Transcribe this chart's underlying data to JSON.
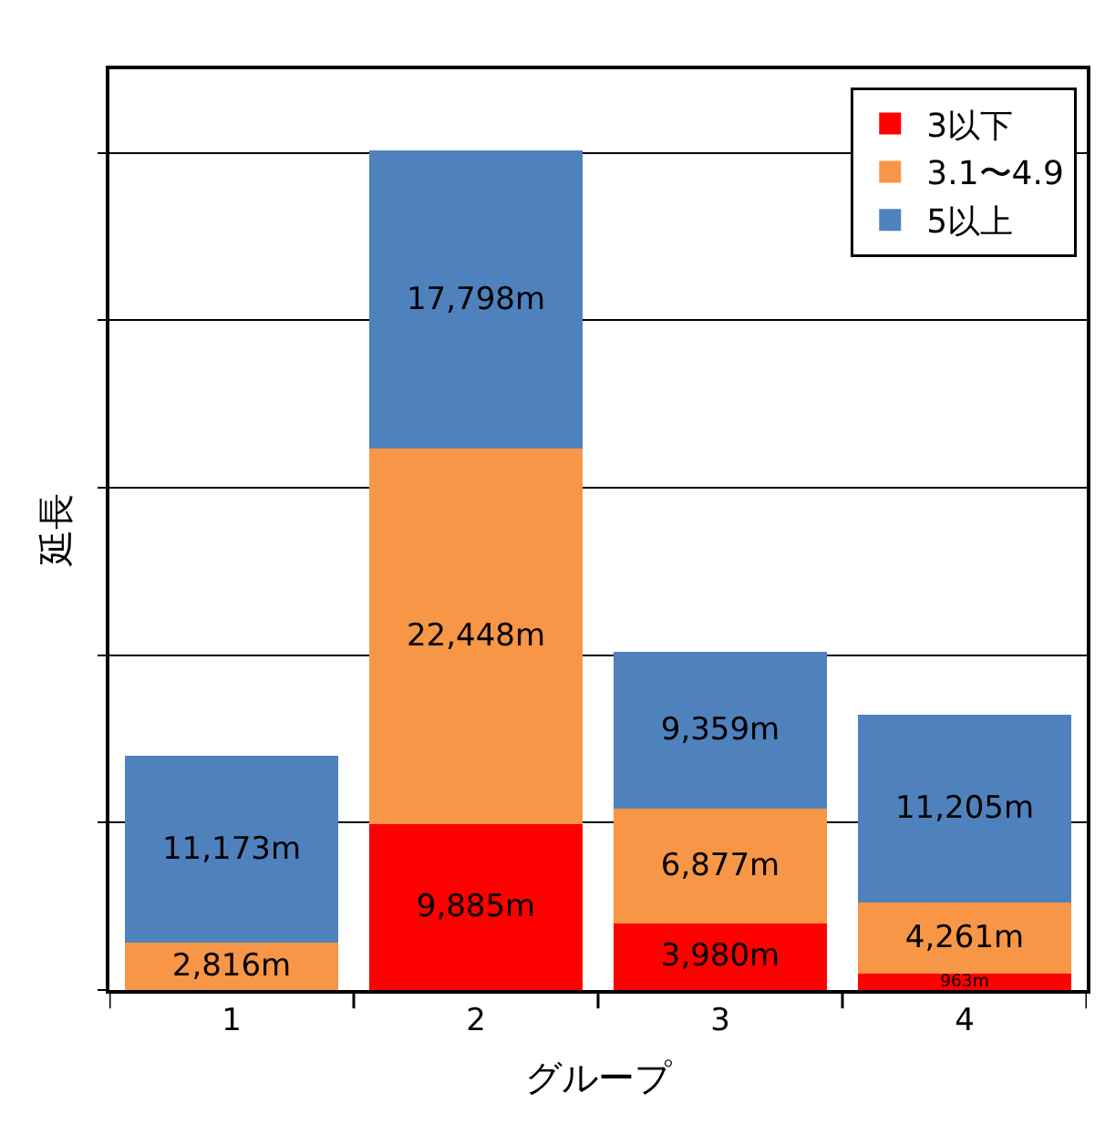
{
  "chart_data": {
    "type": "bar",
    "stacked": true,
    "xlabel": "グループ",
    "ylabel": "延長",
    "categories": [
      "1",
      "2",
      "3",
      "4"
    ],
    "series": [
      {
        "name": "3以下",
        "color": "#ff0000",
        "values": [
          null,
          9885,
          3980,
          963
        ],
        "value_labels": [
          null,
          "9,885m",
          "3,980m",
          "963m"
        ]
      },
      {
        "name": "3.1〜4.9",
        "color": "#f79646",
        "values": [
          2816,
          22448,
          6877,
          4261
        ],
        "value_labels": [
          "2,816m",
          "22,448m",
          "6,877m",
          "4,261m"
        ]
      },
      {
        "name": "5以上",
        "color": "#4f81bd",
        "values": [
          11173,
          17798,
          9359,
          11205
        ],
        "value_labels": [
          "11,173m",
          "17,798m",
          "9,359m",
          "11,205m"
        ]
      }
    ],
    "ylim": [
      0,
      55000
    ],
    "yticks": [
      {
        "value": 0,
        "label": null
      },
      {
        "value": 10000,
        "label": null
      },
      {
        "value": 20000,
        "label": null
      },
      {
        "value": 30000,
        "label": null
      },
      {
        "value": 40000,
        "label": null
      },
      {
        "value": 50000,
        "label": null
      }
    ],
    "tick_labels": "x",
    "grid": "y",
    "legend": "top right"
  }
}
